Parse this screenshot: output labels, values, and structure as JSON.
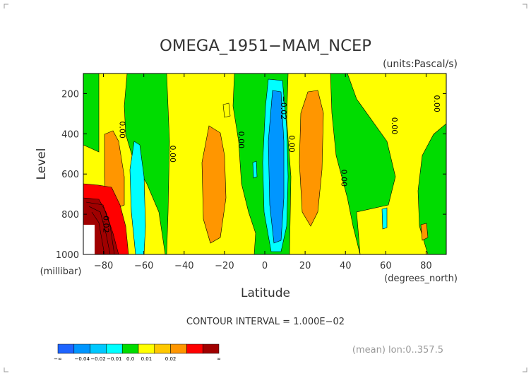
{
  "chart_data": {
    "type": "heatmap",
    "title": "OMEGA_1951−MAM_NCEP",
    "units_label": "(units:Pascal/s)",
    "xlabel": "Latitude",
    "ylabel": "Level",
    "x_units_label": "(degrees_north)",
    "y_units_label": "(millibar)",
    "xlim": [
      -90,
      90
    ],
    "ylim": [
      1000,
      100
    ],
    "x_ticks": [
      -80,
      -60,
      -40,
      -20,
      0,
      20,
      40,
      60,
      80
    ],
    "x_tick_labels": [
      "−80",
      "−60",
      "−40",
      "−20",
      "0",
      "20",
      "40",
      "60",
      "80"
    ],
    "y_ticks": [
      200,
      400,
      600,
      800,
      1000
    ],
    "y_tick_labels": [
      "200",
      "400",
      "600",
      "800",
      "1000"
    ],
    "contour_interval_text": "CONTOUR INTERVAL = 1.000E−02",
    "mean_text": "(mean) lon:0..357.5",
    "contour_labels": [
      {
        "text": "0.00",
        "lat": -72,
        "level": 380
      },
      {
        "text": "0.02",
        "lat": -80,
        "level": 850
      },
      {
        "text": "0.00",
        "lat": -47,
        "level": 500
      },
      {
        "text": "0.00",
        "lat": -13,
        "level": 430
      },
      {
        "text": "−0.02",
        "lat": 8,
        "level": 270
      },
      {
        "text": "0.00",
        "lat": 12,
        "level": 450
      },
      {
        "text": "0.00",
        "lat": 38,
        "level": 620
      },
      {
        "text": "0.00",
        "lat": 63,
        "level": 360
      },
      {
        "text": "0.00",
        "lat": 84,
        "level": 250
      }
    ],
    "colorbar": {
      "colors": [
        "#1e64ff",
        "#0096ff",
        "#00c8ff",
        "#00ffff",
        "#00dc00",
        "#ffff00",
        "#ffc800",
        "#ff9600",
        "#ff0000",
        "#a00000"
      ],
      "labels": [
        "−∞",
        "−0.04",
        "−0.02",
        "−0.01",
        "0.0",
        "0.01",
        "0.02",
        "∞"
      ]
    }
  }
}
